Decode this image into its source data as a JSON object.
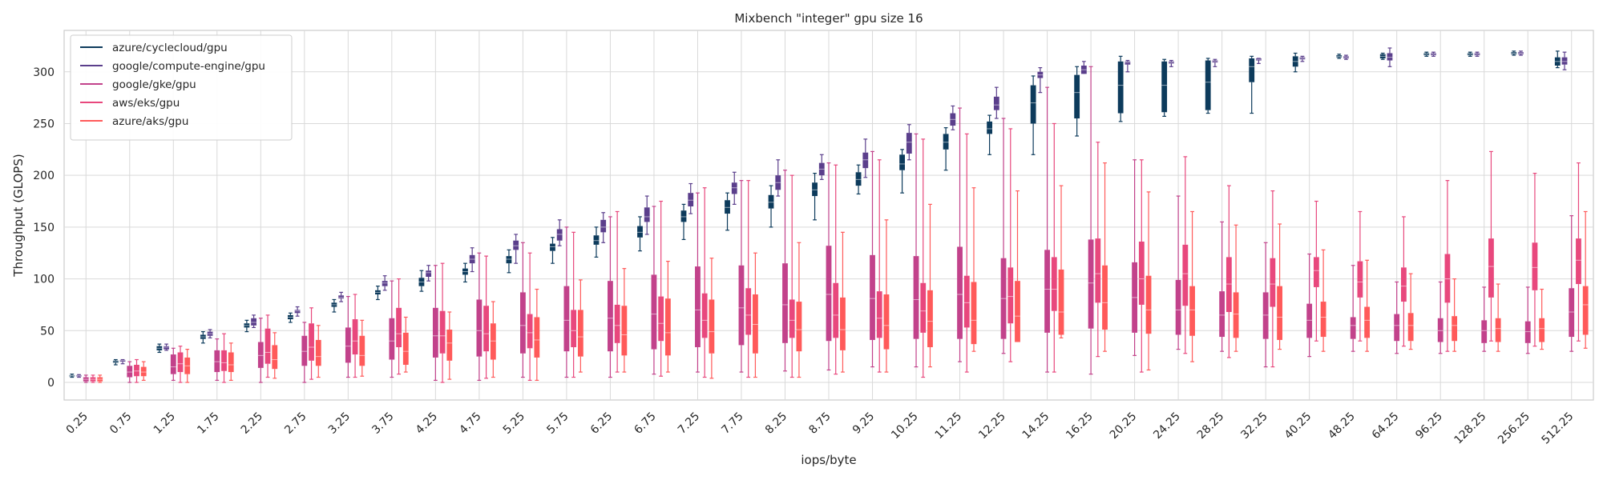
{
  "chart_data": {
    "type": "box",
    "title": "Mixbench \"integer\" gpu size 16",
    "xlabel": "iops/byte",
    "ylabel": "Throughput (GLOPS)",
    "ylim": [
      -17,
      340
    ],
    "yticks": [
      0,
      50,
      100,
      150,
      200,
      250,
      300
    ],
    "grid": true,
    "legend_position": "top-left",
    "categories": [
      "0.25",
      "0.75",
      "1.25",
      "1.75",
      "2.25",
      "2.75",
      "3.25",
      "3.75",
      "4.25",
      "4.75",
      "5.25",
      "5.75",
      "6.25",
      "6.75",
      "7.25",
      "7.75",
      "8.25",
      "8.75",
      "9.25",
      "10.25",
      "11.25",
      "12.25",
      "14.25",
      "16.25",
      "20.25",
      "24.25",
      "28.25",
      "32.25",
      "40.25",
      "48.25",
      "64.25",
      "96.25",
      "128.25",
      "256.25",
      "512.25"
    ],
    "series": [
      {
        "name": "azure/cyclecloud/gpu",
        "color": "#0d3b5c",
        "boxes": [
          [
            5,
            6,
            6.5,
            7,
            8
          ],
          [
            17,
            19,
            20,
            21,
            22
          ],
          [
            29,
            31,
            33,
            35,
            37
          ],
          [
            38,
            42,
            44,
            46,
            49
          ],
          [
            49,
            53,
            55,
            57,
            60
          ],
          [
            58,
            61,
            63,
            65,
            67
          ],
          [
            68,
            73,
            75,
            77,
            80
          ],
          [
            80,
            85,
            87,
            89,
            93
          ],
          [
            88,
            93,
            97,
            101,
            108
          ],
          [
            97,
            104,
            107,
            110,
            115
          ],
          [
            106,
            115,
            119,
            122,
            128
          ],
          [
            115,
            127,
            131,
            134,
            140
          ],
          [
            121,
            133,
            137,
            142,
            150
          ],
          [
            127,
            140,
            145,
            151,
            160
          ],
          [
            138,
            155,
            160,
            166,
            172
          ],
          [
            147,
            163,
            169,
            176,
            183
          ],
          [
            150,
            168,
            174,
            181,
            190
          ],
          [
            157,
            180,
            186,
            193,
            202
          ],
          [
            182,
            190,
            196,
            203,
            210
          ],
          [
            183,
            205,
            211,
            220,
            225
          ],
          [
            205,
            225,
            232,
            240,
            246
          ],
          [
            220,
            240,
            245,
            252,
            258
          ],
          [
            220,
            250,
            270,
            287,
            296
          ],
          [
            238,
            255,
            280,
            297,
            305
          ],
          [
            252,
            260,
            287,
            310,
            315
          ],
          [
            257,
            261,
            287,
            310,
            312
          ],
          [
            260,
            263,
            290,
            311,
            313
          ],
          [
            260,
            290,
            305,
            313,
            315
          ],
          [
            300,
            305,
            310,
            315,
            318
          ],
          [
            313,
            314,
            315,
            316,
            317
          ],
          [
            312,
            313,
            315,
            317,
            318
          ],
          [
            315,
            316,
            317,
            318,
            319
          ],
          [
            315,
            316,
            317,
            318,
            319
          ],
          [
            316,
            317,
            318,
            319,
            320
          ],
          [
            304,
            306,
            310,
            314,
            320
          ]
        ]
      },
      {
        "name": "google/compute-engine/gpu",
        "color": "#5b3f8c",
        "boxes": [
          [
            5,
            6,
            6.5,
            7,
            7.5
          ],
          [
            18,
            20,
            21,
            21.5,
            22
          ],
          [
            31,
            32,
            34,
            35,
            37
          ],
          [
            43,
            45,
            47,
            49,
            51
          ],
          [
            53,
            55,
            58,
            62,
            65
          ],
          [
            64,
            67,
            69,
            70,
            73
          ],
          [
            78,
            81,
            82,
            84,
            87
          ],
          [
            89,
            93,
            96,
            98,
            103
          ],
          [
            98,
            102,
            106,
            108,
            113
          ],
          [
            107,
            115,
            119,
            123,
            130
          ],
          [
            115,
            128,
            132,
            137,
            143
          ],
          [
            132,
            137,
            143,
            148,
            157
          ],
          [
            135,
            145,
            150,
            157,
            164
          ],
          [
            143,
            155,
            160,
            169,
            180
          ],
          [
            163,
            170,
            176,
            183,
            192
          ],
          [
            172,
            182,
            188,
            193,
            203
          ],
          [
            180,
            186,
            193,
            200,
            215
          ],
          [
            196,
            200,
            206,
            212,
            220
          ],
          [
            198,
            207,
            215,
            222,
            235
          ],
          [
            215,
            221,
            232,
            241,
            249
          ],
          [
            244,
            248,
            254,
            260,
            267
          ],
          [
            255,
            263,
            268,
            276,
            285
          ],
          [
            280,
            294,
            297,
            300,
            304
          ],
          [
            300,
            298,
            302,
            306,
            310
          ],
          [
            300,
            307,
            309,
            310,
            311
          ],
          [
            305,
            308,
            309,
            310,
            311
          ],
          [
            305,
            309,
            310,
            311,
            312
          ],
          [
            308,
            311,
            312,
            313,
            313
          ],
          [
            310,
            312,
            313,
            314,
            315
          ],
          [
            312,
            313,
            314,
            315,
            316
          ],
          [
            305,
            311,
            314,
            318,
            323
          ],
          [
            315,
            316,
            317,
            318,
            319
          ],
          [
            315,
            316,
            317,
            318,
            319
          ],
          [
            316,
            317,
            318,
            319,
            320
          ],
          [
            302,
            307,
            310,
            314,
            319
          ]
        ]
      },
      {
        "name": "google/gke/gpu",
        "color": "#c2428b",
        "boxes": [
          [
            0,
            1,
            3,
            5,
            7
          ],
          [
            0,
            5,
            10,
            16,
            20
          ],
          [
            2,
            8,
            15,
            27,
            33
          ],
          [
            2,
            10,
            20,
            31,
            42
          ],
          [
            0,
            14,
            26,
            39,
            62
          ],
          [
            0,
            16,
            30,
            45,
            58
          ],
          [
            5,
            19,
            35,
            53,
            83
          ],
          [
            5,
            22,
            40,
            62,
            98
          ],
          [
            2,
            24,
            45,
            72,
            113
          ],
          [
            2,
            25,
            50,
            80,
            125
          ],
          [
            5,
            28,
            55,
            87,
            135
          ],
          [
            5,
            30,
            60,
            93,
            150
          ],
          [
            5,
            30,
            62,
            98,
            160
          ],
          [
            8,
            32,
            66,
            104,
            170
          ],
          [
            10,
            34,
            70,
            112,
            183
          ],
          [
            10,
            36,
            72,
            113,
            195
          ],
          [
            11,
            38,
            75,
            115,
            205
          ],
          [
            12,
            40,
            85,
            132,
            212
          ],
          [
            15,
            41,
            81,
            123,
            223
          ],
          [
            15,
            42,
            80,
            122,
            240
          ],
          [
            20,
            42,
            85,
            131,
            265
          ],
          [
            28,
            42,
            81,
            120,
            255
          ],
          [
            10,
            48,
            90,
            128,
            285
          ],
          [
            8,
            52,
            96,
            138,
            305
          ],
          [
            26,
            48,
            82,
            116,
            215
          ],
          [
            32,
            46,
            70,
            99,
            180
          ],
          [
            30,
            44,
            65,
            88,
            155
          ],
          [
            15,
            42,
            65,
            87,
            135
          ],
          [
            25,
            43,
            60,
            76,
            124
          ],
          [
            30,
            42,
            55,
            63,
            113
          ],
          [
            28,
            40,
            55,
            66,
            97
          ],
          [
            28,
            39,
            50,
            62,
            97
          ],
          [
            30,
            38,
            50,
            60,
            92
          ],
          [
            28,
            38,
            49,
            59,
            92
          ],
          [
            30,
            44,
            68,
            91,
            161
          ]
        ]
      },
      {
        "name": "aws/eks/gpu",
        "color": "#e8487d",
        "boxes": [
          [
            0,
            1,
            3,
            5,
            7
          ],
          [
            0,
            6,
            11,
            17,
            22
          ],
          [
            0,
            10,
            18,
            29,
            35
          ],
          [
            0,
            11,
            19,
            31,
            47
          ],
          [
            5,
            18,
            29,
            52,
            65
          ],
          [
            3,
            21,
            34,
            57,
            72
          ],
          [
            5,
            27,
            40,
            61,
            85
          ],
          [
            8,
            34,
            47,
            72,
            100
          ],
          [
            0,
            28,
            45,
            69,
            115
          ],
          [
            4,
            30,
            47,
            74,
            122
          ],
          [
            2,
            33,
            48,
            66,
            125
          ],
          [
            5,
            34,
            50,
            70,
            145
          ],
          [
            10,
            38,
            55,
            75,
            165
          ],
          [
            6,
            40,
            57,
            83,
            175
          ],
          [
            5,
            43,
            60,
            86,
            188
          ],
          [
            5,
            46,
            65,
            91,
            195
          ],
          [
            5,
            43,
            60,
            80,
            200
          ],
          [
            8,
            43,
            65,
            96,
            210
          ],
          [
            10,
            43,
            62,
            88,
            215
          ],
          [
            5,
            48,
            69,
            96,
            235
          ],
          [
            10,
            53,
            77,
            103,
            240
          ],
          [
            20,
            57,
            83,
            111,
            245
          ],
          [
            10,
            69,
            90,
            121,
            250
          ],
          [
            25,
            77,
            105,
            139,
            232
          ],
          [
            10,
            75,
            100,
            136,
            215
          ],
          [
            28,
            74,
            105,
            133,
            218
          ],
          [
            24,
            68,
            95,
            121,
            190
          ],
          [
            15,
            73,
            95,
            120,
            185
          ],
          [
            40,
            92,
            108,
            121,
            175
          ],
          [
            40,
            82,
            97,
            117,
            165
          ],
          [
            35,
            78,
            93,
            111,
            160
          ],
          [
            30,
            77,
            100,
            124,
            195
          ],
          [
            40,
            82,
            112,
            139,
            223
          ],
          [
            35,
            89,
            111,
            135,
            202
          ],
          [
            40,
            95,
            118,
            139,
            212
          ]
        ]
      },
      {
        "name": "azure/aks/gpu",
        "color": "#ff5a5a",
        "boxes": [
          [
            0,
            1,
            3,
            5,
            7
          ],
          [
            2,
            6,
            10,
            15,
            20
          ],
          [
            0,
            8,
            16,
            24,
            32
          ],
          [
            2,
            10,
            17,
            29,
            38
          ],
          [
            4,
            13,
            22,
            36,
            48
          ],
          [
            5,
            16,
            25,
            41,
            55
          ],
          [
            6,
            16,
            26,
            45,
            60
          ],
          [
            10,
            17,
            30,
            48,
            63
          ],
          [
            3,
            21,
            38,
            51,
            68
          ],
          [
            5,
            22,
            40,
            57,
            78
          ],
          [
            2,
            24,
            41,
            63,
            90
          ],
          [
            10,
            25,
            44,
            70,
            99
          ],
          [
            10,
            26,
            46,
            74,
            110
          ],
          [
            10,
            26,
            48,
            81,
            117
          ],
          [
            4,
            28,
            49,
            80,
            120
          ],
          [
            5,
            28,
            56,
            85,
            125
          ],
          [
            5,
            30,
            51,
            78,
            135
          ],
          [
            10,
            31,
            51,
            82,
            145
          ],
          [
            10,
            32,
            55,
            85,
            157
          ],
          [
            15,
            34,
            59,
            89,
            172
          ],
          [
            30,
            37,
            60,
            97,
            188
          ],
          [
            45,
            39,
            64,
            98,
            185
          ],
          [
            43,
            46,
            68,
            109,
            190
          ],
          [
            30,
            51,
            77,
            113,
            212
          ],
          [
            12,
            47,
            70,
            103,
            184
          ],
          [
            20,
            45,
            70,
            93,
            165
          ],
          [
            30,
            43,
            66,
            87,
            152
          ],
          [
            32,
            41,
            63,
            93,
            153
          ],
          [
            30,
            44,
            63,
            78,
            128
          ],
          [
            30,
            43,
            60,
            73,
            118
          ],
          [
            32,
            40,
            55,
            67,
            105
          ],
          [
            30,
            40,
            55,
            64,
            100
          ],
          [
            30,
            39,
            52,
            62,
            95
          ],
          [
            32,
            39,
            52,
            62,
            90
          ],
          [
            33,
            46,
            75,
            93,
            165
          ]
        ]
      }
    ]
  }
}
